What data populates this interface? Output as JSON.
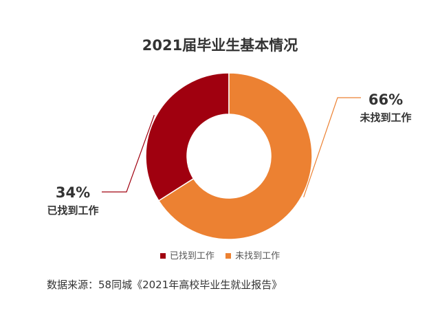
{
  "chart_data": {
    "type": "pie",
    "title": "2021届毕业生基本情况",
    "categories": [
      "已找到工作",
      "未找到工作"
    ],
    "values": [
      34,
      66
    ],
    "value_labels": [
      "34%",
      "66%"
    ],
    "colors": [
      "#A0000F",
      "#EC8132"
    ],
    "legend_position": "bottom",
    "hole": "donut"
  },
  "source": "数据来源：58同城《2021年高校毕业生就业报告》"
}
